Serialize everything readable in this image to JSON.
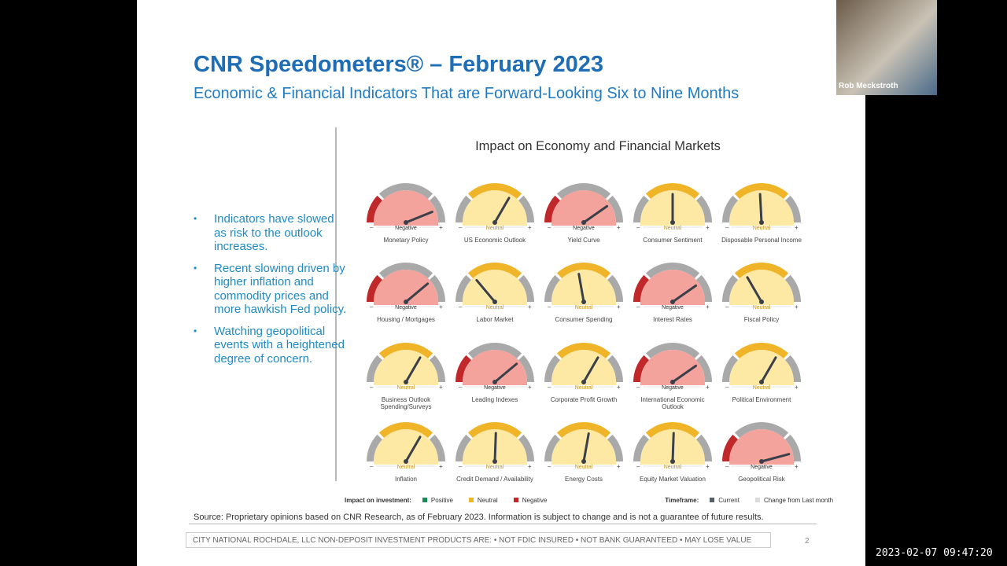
{
  "slide": {
    "title": "CNR Speedometers® – February 2023",
    "subtitle": "Economic & Financial Indicators That are Forward-Looking Six to Nine Months",
    "bullets": [
      "Indicators have slowed as risk to the outlook increases.",
      "Recent slowing driven by higher inflation and commodity prices and more hawkish Fed policy.",
      "Watching geopolitical events with a heightened degree of concern."
    ],
    "panel_title": "Impact on Economy and Financial Markets",
    "scale_min_label": "–",
    "scale_max_label": "+",
    "gauges": [
      {
        "label": "Monetary Policy",
        "status": "Negative",
        "needle": 22
      },
      {
        "label": "US Economic Outlook",
        "status": "Neutral",
        "needle": 60
      },
      {
        "label": "Yield Curve",
        "status": "Negative",
        "needle": 35
      },
      {
        "label": "Consumer Sentiment",
        "status": "Neutral",
        "needle": 90
      },
      {
        "label": "Disposable Personal Income",
        "status": "Neutral",
        "needle": 93
      },
      {
        "label": "Housing / Mortgages",
        "status": "Negative",
        "needle": 40
      },
      {
        "label": "Labor Market",
        "status": "Neutral",
        "needle": 130
      },
      {
        "label": "Consumer Spending",
        "status": "Neutral",
        "needle": 100
      },
      {
        "label": "Interest Rates",
        "status": "Negative",
        "needle": 35
      },
      {
        "label": "Fiscal Policy",
        "status": "Neutral",
        "needle": 120
      },
      {
        "label": "Business Outlook Spending/Surveys",
        "status": "Neutral",
        "needle": 60
      },
      {
        "label": "Leading Indexes",
        "status": "Negative",
        "needle": 40
      },
      {
        "label": "Corporate Profit Growth",
        "status": "Neutral",
        "needle": 60
      },
      {
        "label": "International Economic Outlook",
        "status": "Negative",
        "needle": 35
      },
      {
        "label": "Political Environment",
        "status": "Neutral",
        "needle": 60
      },
      {
        "label": "Inflation",
        "status": "Neutral",
        "needle": 60
      },
      {
        "label": "Credit Demand / Availability",
        "status": "Neutral",
        "needle": 88
      },
      {
        "label": "Energy Costs",
        "status": "Neutral",
        "needle": 80
      },
      {
        "label": "Equity Market Valuation",
        "status": "Neutral",
        "needle": 88
      },
      {
        "label": "Geopolitical Risk",
        "status": "Negative",
        "needle": 15
      }
    ],
    "legend": {
      "impact_title": "Impact on investment:",
      "impact_items": [
        {
          "name": "Positive",
          "color": "#1a8a5a"
        },
        {
          "name": "Neutral",
          "color": "#f0b429"
        },
        {
          "name": "Negative",
          "color": "#c0282a"
        }
      ],
      "timeframe_title": "Timeframe:",
      "timeframe_items": [
        {
          "name": "Current",
          "color": "#555e6b"
        },
        {
          "name": "Change from Last month",
          "color": "#dcdcdc"
        }
      ]
    },
    "source": "Source: Proprietary opinions based on CNR Research, as of February 2023. Information is subject to change and is not a guarantee of future results.",
    "disclaimer": "CITY NATIONAL ROCHDALE, LLC NON-DEPOSIT INVESTMENT PRODUCTS ARE: • NOT FDIC INSURED • NOT BANK GUARANTEED • MAY LOSE VALUE",
    "page_number": "2"
  },
  "webcam": {
    "name": "Rob Meckstroth"
  },
  "timestamp": "2023-02-07 09:47:20"
}
